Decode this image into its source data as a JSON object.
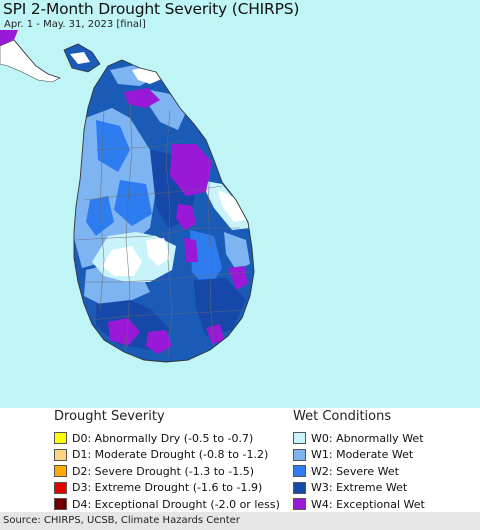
{
  "map": {
    "title": "SPI 2-Month Drought Severity (CHIRPS)",
    "subtitle": "Apr. 1 - May. 31, 2023 [final]",
    "colors": {
      "water": "#bff5f7",
      "island_base": "#1a5bb8",
      "w0": "#c8f3fb",
      "w1": "#7fb4f2",
      "w2": "#2d7cf0",
      "w3": "#1548a8",
      "w4": "#9a18d8",
      "white": "#ffffff"
    }
  },
  "legend": {
    "drought_title": "Drought Severity",
    "wet_title": "Wet Conditions",
    "drought": [
      {
        "label": "D0: Abnormally Dry (-0.5 to -0.7)",
        "color": "#ffff00"
      },
      {
        "label": "D1: Moderate Drought (-0.8 to -1.2)",
        "color": "#fcd37f"
      },
      {
        "label": "D2: Severe Drought (-1.3 to -1.5)",
        "color": "#ffaa00"
      },
      {
        "label": "D3: Extreme Drought (-1.6 to -1.9)",
        "color": "#e60000"
      },
      {
        "label": "D4: Exceptional Drought (-2.0 or less)",
        "color": "#730000"
      }
    ],
    "wet": [
      {
        "label": "W0: Abnormally Wet",
        "color": "#c8f3fb"
      },
      {
        "label": "W1: Moderate Wet",
        "color": "#7fb4f2"
      },
      {
        "label": "W2: Severe Wet",
        "color": "#2d7cf0"
      },
      {
        "label": "W3: Extreme Wet",
        "color": "#1548a8"
      },
      {
        "label": "W4: Exceptional Wet",
        "color": "#9a18d8"
      }
    ]
  },
  "footer": {
    "source": "Source: CHIRPS, UCSB, Climate Hazards Center"
  }
}
